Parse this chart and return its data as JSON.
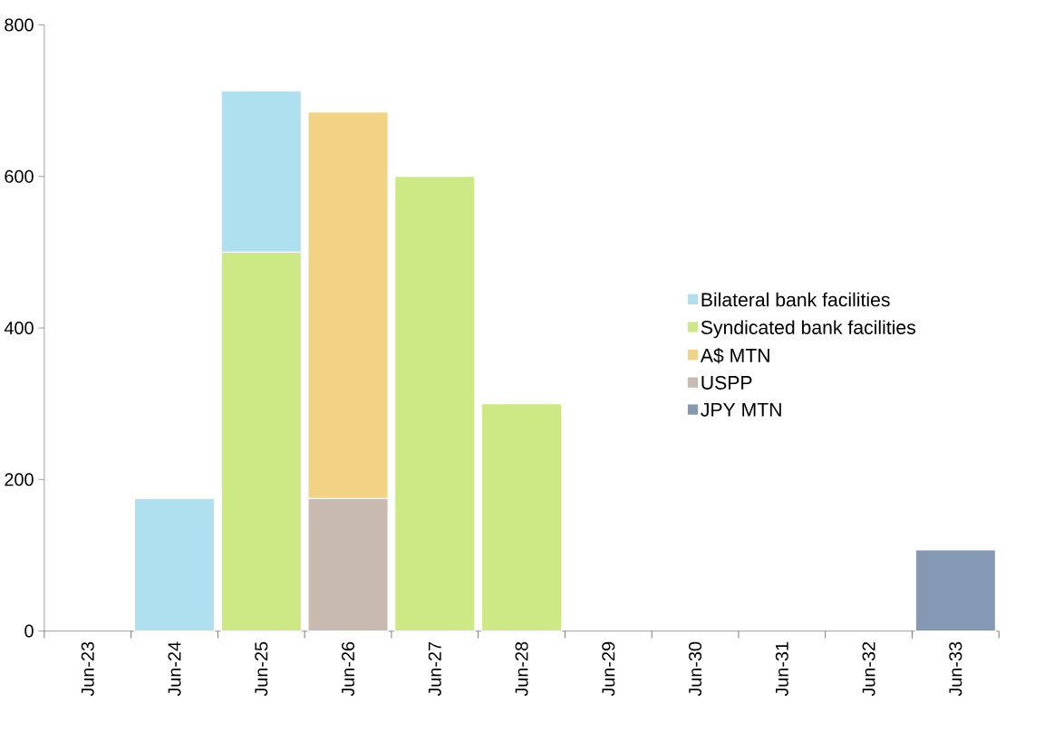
{
  "chart_data": {
    "type": "bar",
    "stacked": true,
    "categories": [
      "Jun-23",
      "Jun-24",
      "Jun-25",
      "Jun-26",
      "Jun-27",
      "Jun-28",
      "Jun-29",
      "Jun-30",
      "Jun-31",
      "Jun-32",
      "Jun-33"
    ],
    "series": [
      {
        "name": "JPY MTN",
        "color": "#8599b5",
        "values": [
          null,
          null,
          null,
          null,
          null,
          null,
          null,
          null,
          null,
          null,
          107
        ]
      },
      {
        "name": "USPP",
        "color": "#c8bab0",
        "values": [
          null,
          null,
          null,
          175,
          null,
          null,
          null,
          null,
          null,
          null,
          null
        ]
      },
      {
        "name": "A$ MTN",
        "color": "#f2d385",
        "values": [
          null,
          null,
          null,
          510,
          null,
          null,
          null,
          null,
          null,
          null,
          null
        ]
      },
      {
        "name": "Syndicated bank facilities",
        "color": "#cde985",
        "values": [
          null,
          null,
          500,
          null,
          600,
          300,
          null,
          null,
          null,
          null,
          null
        ]
      },
      {
        "name": "Bilateral bank facilities",
        "color": "#aee0f0",
        "values": [
          null,
          175,
          213,
          null,
          null,
          null,
          null,
          null,
          null,
          null,
          null
        ]
      }
    ],
    "ylim": [
      0,
      800
    ],
    "yticks": [
      0,
      200,
      400,
      600,
      800
    ],
    "grid": false,
    "legend": "right"
  }
}
